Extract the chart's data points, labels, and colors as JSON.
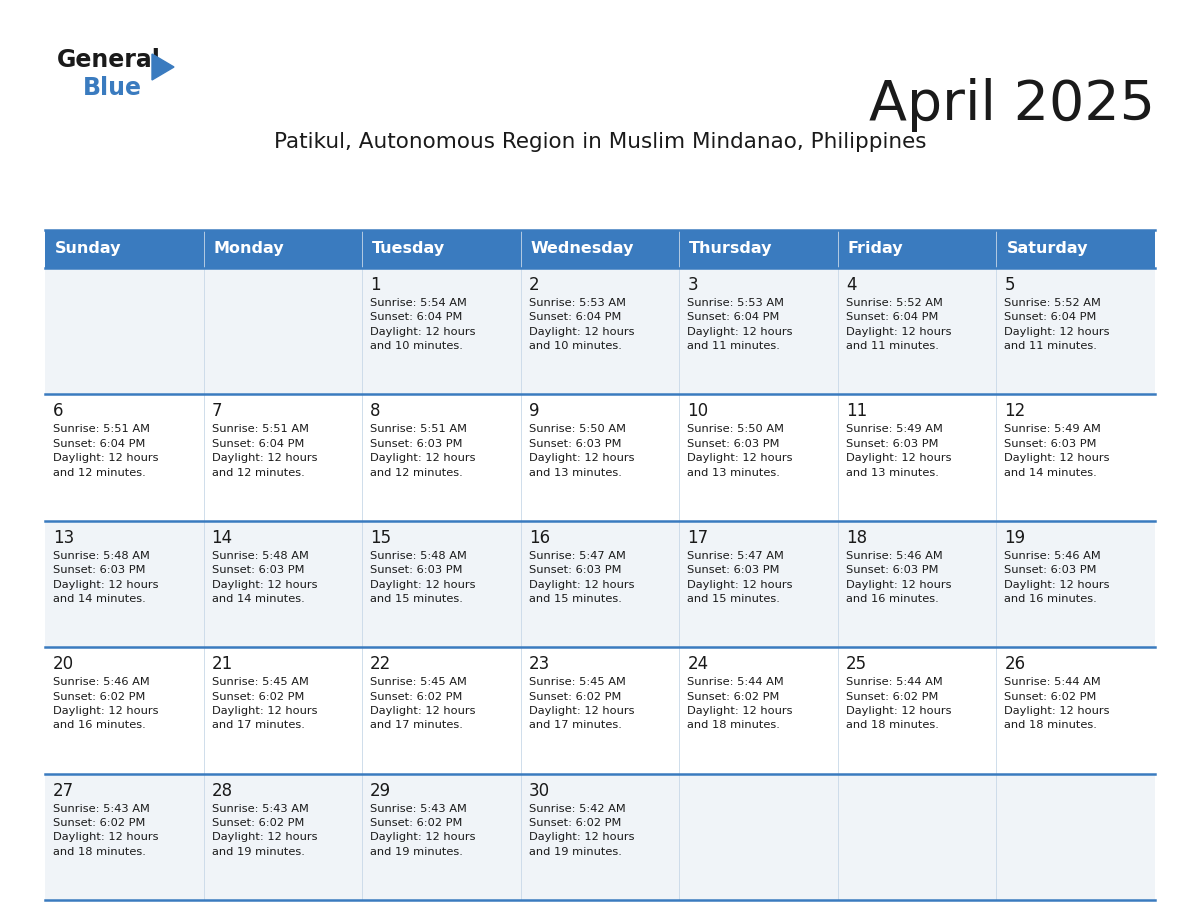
{
  "title": "April 2025",
  "subtitle": "Patikul, Autonomous Region in Muslim Mindanao, Philippines",
  "header_bg_color": "#3a7bbf",
  "header_text_color": "#ffffff",
  "row_bg_color_odd": "#f0f4f8",
  "row_bg_color_even": "#ffffff",
  "border_color": "#3a7bbf",
  "day_headers": [
    "Sunday",
    "Monday",
    "Tuesday",
    "Wednesday",
    "Thursday",
    "Friday",
    "Saturday"
  ],
  "title_color": "#1a1a1a",
  "subtitle_color": "#1a1a1a",
  "cell_text_color": "#1a1a1a",
  "logo_color_general": "#1a1a1a",
  "logo_color_blue": "#3a7bbf",
  "logo_triangle_color": "#3a7bbf",
  "calendar_data": [
    [
      "",
      "",
      "1\nSunrise: 5:54 AM\nSunset: 6:04 PM\nDaylight: 12 hours\nand 10 minutes.",
      "2\nSunrise: 5:53 AM\nSunset: 6:04 PM\nDaylight: 12 hours\nand 10 minutes.",
      "3\nSunrise: 5:53 AM\nSunset: 6:04 PM\nDaylight: 12 hours\nand 11 minutes.",
      "4\nSunrise: 5:52 AM\nSunset: 6:04 PM\nDaylight: 12 hours\nand 11 minutes.",
      "5\nSunrise: 5:52 AM\nSunset: 6:04 PM\nDaylight: 12 hours\nand 11 minutes."
    ],
    [
      "6\nSunrise: 5:51 AM\nSunset: 6:04 PM\nDaylight: 12 hours\nand 12 minutes.",
      "7\nSunrise: 5:51 AM\nSunset: 6:04 PM\nDaylight: 12 hours\nand 12 minutes.",
      "8\nSunrise: 5:51 AM\nSunset: 6:03 PM\nDaylight: 12 hours\nand 12 minutes.",
      "9\nSunrise: 5:50 AM\nSunset: 6:03 PM\nDaylight: 12 hours\nand 13 minutes.",
      "10\nSunrise: 5:50 AM\nSunset: 6:03 PM\nDaylight: 12 hours\nand 13 minutes.",
      "11\nSunrise: 5:49 AM\nSunset: 6:03 PM\nDaylight: 12 hours\nand 13 minutes.",
      "12\nSunrise: 5:49 AM\nSunset: 6:03 PM\nDaylight: 12 hours\nand 14 minutes."
    ],
    [
      "13\nSunrise: 5:48 AM\nSunset: 6:03 PM\nDaylight: 12 hours\nand 14 minutes.",
      "14\nSunrise: 5:48 AM\nSunset: 6:03 PM\nDaylight: 12 hours\nand 14 minutes.",
      "15\nSunrise: 5:48 AM\nSunset: 6:03 PM\nDaylight: 12 hours\nand 15 minutes.",
      "16\nSunrise: 5:47 AM\nSunset: 6:03 PM\nDaylight: 12 hours\nand 15 minutes.",
      "17\nSunrise: 5:47 AM\nSunset: 6:03 PM\nDaylight: 12 hours\nand 15 minutes.",
      "18\nSunrise: 5:46 AM\nSunset: 6:03 PM\nDaylight: 12 hours\nand 16 minutes.",
      "19\nSunrise: 5:46 AM\nSunset: 6:03 PM\nDaylight: 12 hours\nand 16 minutes."
    ],
    [
      "20\nSunrise: 5:46 AM\nSunset: 6:02 PM\nDaylight: 12 hours\nand 16 minutes.",
      "21\nSunrise: 5:45 AM\nSunset: 6:02 PM\nDaylight: 12 hours\nand 17 minutes.",
      "22\nSunrise: 5:45 AM\nSunset: 6:02 PM\nDaylight: 12 hours\nand 17 minutes.",
      "23\nSunrise: 5:45 AM\nSunset: 6:02 PM\nDaylight: 12 hours\nand 17 minutes.",
      "24\nSunrise: 5:44 AM\nSunset: 6:02 PM\nDaylight: 12 hours\nand 18 minutes.",
      "25\nSunrise: 5:44 AM\nSunset: 6:02 PM\nDaylight: 12 hours\nand 18 minutes.",
      "26\nSunrise: 5:44 AM\nSunset: 6:02 PM\nDaylight: 12 hours\nand 18 minutes."
    ],
    [
      "27\nSunrise: 5:43 AM\nSunset: 6:02 PM\nDaylight: 12 hours\nand 18 minutes.",
      "28\nSunrise: 5:43 AM\nSunset: 6:02 PM\nDaylight: 12 hours\nand 19 minutes.",
      "29\nSunrise: 5:43 AM\nSunset: 6:02 PM\nDaylight: 12 hours\nand 19 minutes.",
      "30\nSunrise: 5:42 AM\nSunset: 6:02 PM\nDaylight: 12 hours\nand 19 minutes.",
      "",
      "",
      ""
    ]
  ]
}
